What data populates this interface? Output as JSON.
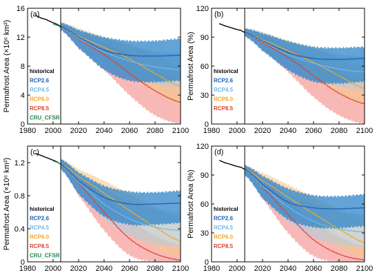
{
  "colors": {
    "historical": "#000000",
    "rcp26": "#1f5fb0",
    "rcp45": "#6fb9e6",
    "rcp60": "#f5a623",
    "rcp85": "#d9452f",
    "cru": "#1e8a4a",
    "band26": "#2f84c8",
    "band45": "#a9cdea",
    "band60": "#f7c68a",
    "band85": "#f2807a"
  },
  "chart_data": [
    {
      "type": "line",
      "panel_label": "(a)",
      "ylabel": "Permafrost Area (×10⁶ km²)",
      "xlim": [
        1980,
        2100
      ],
      "ylim": [
        0,
        16
      ],
      "xticks": [
        1980,
        2000,
        2020,
        2040,
        2060,
        2080,
        2100
      ],
      "yticks": [
        0,
        4,
        8,
        12,
        16
      ],
      "xtick_labels": [
        "1980",
        "2000",
        "2020",
        "2040",
        "2060",
        "2080",
        "2100"
      ],
      "ytick_labels": [
        "0",
        "4",
        "8",
        "12",
        "16"
      ],
      "vline_x": 2006,
      "legend": [
        "historical",
        "RCP2.6",
        "RCP4.5",
        "RCP6.0",
        "RCP8.5",
        "CRU_CFSR"
      ],
      "series": [
        {
          "name": "historical",
          "x": [
            1986,
            1990,
            1995,
            2000,
            2003,
            2006
          ],
          "y": [
            15.0,
            14.7,
            14.4,
            14.0,
            13.8,
            13.5
          ]
        },
        {
          "name": "CRU_CFSR",
          "x": [
            2000,
            2002,
            2004,
            2006
          ],
          "y": [
            13.8,
            13.7,
            13.6,
            13.4
          ]
        },
        {
          "name": "RCP2.6",
          "x": [
            2006,
            2020,
            2040,
            2060,
            2080,
            2100
          ],
          "y": [
            13.5,
            12.0,
            10.2,
            9.5,
            9.4,
            9.5
          ],
          "lower": [
            13.0,
            10.5,
            7.5,
            6.0,
            5.8,
            6.0
          ],
          "upper": [
            14.0,
            13.0,
            12.0,
            11.5,
            11.5,
            11.8
          ]
        },
        {
          "name": "RCP4.5",
          "x": [
            2006,
            2020,
            2040,
            2060,
            2080,
            2100
          ],
          "y": [
            13.5,
            11.8,
            10.0,
            8.7,
            7.9,
            7.5
          ],
          "lower": [
            13.0,
            10.5,
            8.0,
            6.5,
            5.5,
            5.0
          ],
          "upper": [
            14.0,
            13.0,
            11.8,
            10.8,
            10.0,
            9.8
          ]
        },
        {
          "name": "RCP6.0",
          "x": [
            2006,
            2020,
            2040,
            2060,
            2080,
            2100
          ],
          "y": [
            13.5,
            12.1,
            10.6,
            9.0,
            7.0,
            5.2
          ],
          "lower": [
            13.0,
            11.0,
            9.0,
            6.8,
            4.5,
            2.5
          ],
          "upper": [
            14.0,
            13.2,
            12.0,
            11.0,
            9.5,
            8.0
          ]
        },
        {
          "name": "RCP8.5",
          "x": [
            2006,
            2020,
            2040,
            2060,
            2080,
            2100
          ],
          "y": [
            13.5,
            11.7,
            9.6,
            7.0,
            4.6,
            3.0
          ],
          "lower": [
            13.0,
            10.5,
            7.5,
            4.0,
            1.2,
            0.0
          ],
          "upper": [
            14.0,
            12.8,
            11.3,
            9.5,
            7.5,
            6.2
          ]
        }
      ]
    },
    {
      "type": "line",
      "panel_label": "(b)",
      "ylabel": "Permafrost Area (%)",
      "xlim": [
        1980,
        2100
      ],
      "ylim": [
        0,
        120
      ],
      "xticks": [
        1980,
        2000,
        2020,
        2040,
        2060,
        2080,
        2100
      ],
      "yticks": [
        0,
        30,
        60,
        90,
        120
      ],
      "xtick_labels": [
        "1980",
        "2000",
        "2020",
        "2040",
        "2060",
        "2080",
        "2100"
      ],
      "ytick_labels": [
        "0",
        "30",
        "60",
        "90",
        "120"
      ],
      "vline_x": 2006,
      "legend": [
        "historical",
        "RCP2.6",
        "RCP4.5",
        "RCP6.0",
        "RCP8.5"
      ],
      "series": [
        {
          "name": "historical",
          "x": [
            1986,
            1990,
            1995,
            2000,
            2003,
            2006
          ],
          "y": [
            104,
            102,
            100,
            98,
            97,
            95
          ]
        },
        {
          "name": "RCP2.6",
          "x": [
            2006,
            2020,
            2040,
            2060,
            2080,
            2100
          ],
          "y": [
            95,
            86,
            74,
            68,
            67,
            68
          ],
          "lower": [
            91,
            76,
            56,
            44,
            42,
            44
          ],
          "upper": [
            99,
            94,
            86,
            80,
            79,
            80
          ]
        },
        {
          "name": "RCP4.5",
          "x": [
            2006,
            2020,
            2040,
            2060,
            2080,
            2100
          ],
          "y": [
            95,
            85,
            72,
            63,
            57,
            54
          ],
          "lower": [
            91,
            76,
            58,
            46,
            39,
            35
          ],
          "upper": [
            99,
            94,
            85,
            78,
            72,
            70
          ]
        },
        {
          "name": "RCP6.0",
          "x": [
            2006,
            2020,
            2040,
            2060,
            2080,
            2100
          ],
          "y": [
            95,
            87,
            76,
            64,
            50,
            37
          ],
          "lower": [
            91,
            79,
            65,
            48,
            32,
            18
          ],
          "upper": [
            99,
            95,
            86,
            79,
            68,
            58
          ]
        },
        {
          "name": "RCP8.5",
          "x": [
            2006,
            2020,
            2040,
            2060,
            2080,
            2100
          ],
          "y": [
            95,
            84,
            69,
            50,
            32,
            21
          ],
          "lower": [
            91,
            76,
            54,
            28,
            9,
            0
          ],
          "upper": [
            99,
            92,
            81,
            68,
            54,
            45
          ]
        }
      ]
    },
    {
      "type": "line",
      "panel_label": "(c)",
      "ylabel": "Permafrost Area (×10⁶ km²)",
      "xlim": [
        1980,
        2100
      ],
      "ylim": [
        0,
        1.4
      ],
      "xticks": [
        1980,
        2000,
        2020,
        2040,
        2060,
        2080,
        2100
      ],
      "yticks": [
        0,
        0.4,
        0.8,
        1.2
      ],
      "xtick_labels": [
        "1980",
        "2000",
        "2020",
        "2040",
        "2060",
        "2080",
        "2100"
      ],
      "ytick_labels": [
        "0",
        "0.4",
        "0.8",
        "1.2"
      ],
      "vline_x": 2006,
      "legend": [
        "historical",
        "RCP2.6",
        "RCP4.5",
        "RCP6.0",
        "RCP8.5",
        "CRU_CFSR"
      ],
      "series": [
        {
          "name": "historical",
          "x": [
            1986,
            1990,
            1995,
            2000,
            2003,
            2006
          ],
          "y": [
            1.31,
            1.29,
            1.26,
            1.23,
            1.21,
            1.18
          ]
        },
        {
          "name": "CRU_CFSR",
          "x": [
            2000,
            2002,
            2004,
            2006
          ],
          "y": [
            1.22,
            1.21,
            1.2,
            1.18
          ]
        },
        {
          "name": "RCP2.6",
          "x": [
            2006,
            2020,
            2040,
            2060,
            2080,
            2100
          ],
          "y": [
            1.18,
            0.98,
            0.78,
            0.7,
            0.7,
            0.71
          ],
          "lower": [
            1.12,
            0.82,
            0.55,
            0.45,
            0.45,
            0.47
          ],
          "upper": [
            1.24,
            1.08,
            0.92,
            0.85,
            0.84,
            0.86
          ]
        },
        {
          "name": "RCP4.5",
          "x": [
            2006,
            2020,
            2040,
            2060,
            2080,
            2100
          ],
          "y": [
            1.18,
            0.96,
            0.7,
            0.52,
            0.42,
            0.38
          ],
          "lower": [
            1.12,
            0.82,
            0.52,
            0.32,
            0.22,
            0.18
          ],
          "upper": [
            1.24,
            1.07,
            0.88,
            0.73,
            0.64,
            0.6
          ]
        },
        {
          "name": "RCP6.0",
          "x": [
            2006,
            2020,
            2040,
            2060,
            2080,
            2100
          ],
          "y": [
            1.18,
            1.03,
            0.83,
            0.62,
            0.42,
            0.25
          ],
          "lower": [
            1.12,
            0.9,
            0.65,
            0.4,
            0.18,
            0.05
          ],
          "upper": [
            1.24,
            1.12,
            0.98,
            0.82,
            0.66,
            0.52
          ]
        },
        {
          "name": "RCP8.5",
          "x": [
            2006,
            2020,
            2040,
            2060,
            2080,
            2100
          ],
          "y": [
            1.18,
            0.95,
            0.6,
            0.28,
            0.1,
            0.02
          ],
          "lower": [
            1.12,
            0.8,
            0.38,
            0.08,
            0.0,
            0.0
          ],
          "upper": [
            1.24,
            1.06,
            0.8,
            0.52,
            0.32,
            0.2
          ]
        }
      ]
    },
    {
      "type": "line",
      "panel_label": "(d)",
      "ylabel": "Permafrost Area (%)",
      "xlim": [
        1980,
        2100
      ],
      "ylim": [
        0,
        120
      ],
      "xticks": [
        1980,
        2000,
        2020,
        2040,
        2060,
        2080,
        2100
      ],
      "yticks": [
        0,
        30,
        60,
        90,
        120
      ],
      "xtick_labels": [
        "1980",
        "2000",
        "2020",
        "2040",
        "2060",
        "2080",
        "2100"
      ],
      "ytick_labels": [
        "0",
        "30",
        "60",
        "90",
        "120"
      ],
      "vline_x": 2006,
      "legend": [
        "historical",
        "RCP2.6",
        "RCP4.5",
        "RCP6.0",
        "RCP8.5"
      ],
      "series": [
        {
          "name": "historical",
          "x": [
            1986,
            1990,
            1995,
            2000,
            2003,
            2006
          ],
          "y": [
            105,
            103,
            101,
            99,
            98,
            96
          ]
        },
        {
          "name": "RCP2.6",
          "x": [
            2006,
            2020,
            2040,
            2060,
            2080,
            2100
          ],
          "y": [
            96,
            80,
            62,
            56,
            55,
            56
          ],
          "lower": [
            90,
            66,
            44,
            36,
            35,
            37
          ],
          "upper": [
            100,
            89,
            76,
            69,
            68,
            70
          ]
        },
        {
          "name": "RCP4.5",
          "x": [
            2006,
            2020,
            2040,
            2060,
            2080,
            2100
          ],
          "y": [
            96,
            78,
            57,
            42,
            34,
            31
          ],
          "lower": [
            90,
            66,
            42,
            26,
            18,
            15
          ],
          "upper": [
            100,
            88,
            72,
            60,
            52,
            49
          ]
        },
        {
          "name": "RCP6.0",
          "x": [
            2006,
            2020,
            2040,
            2060,
            2080,
            2100
          ],
          "y": [
            96,
            84,
            67,
            50,
            34,
            20
          ],
          "lower": [
            90,
            73,
            52,
            32,
            15,
            4
          ],
          "upper": [
            100,
            92,
            80,
            67,
            54,
            42
          ]
        },
        {
          "name": "RCP8.5",
          "x": [
            2006,
            2020,
            2040,
            2060,
            2080,
            2100
          ],
          "y": [
            96,
            77,
            49,
            23,
            8,
            2
          ],
          "lower": [
            90,
            65,
            30,
            6,
            0,
            0
          ],
          "upper": [
            100,
            86,
            65,
            42,
            26,
            16
          ]
        }
      ]
    }
  ]
}
